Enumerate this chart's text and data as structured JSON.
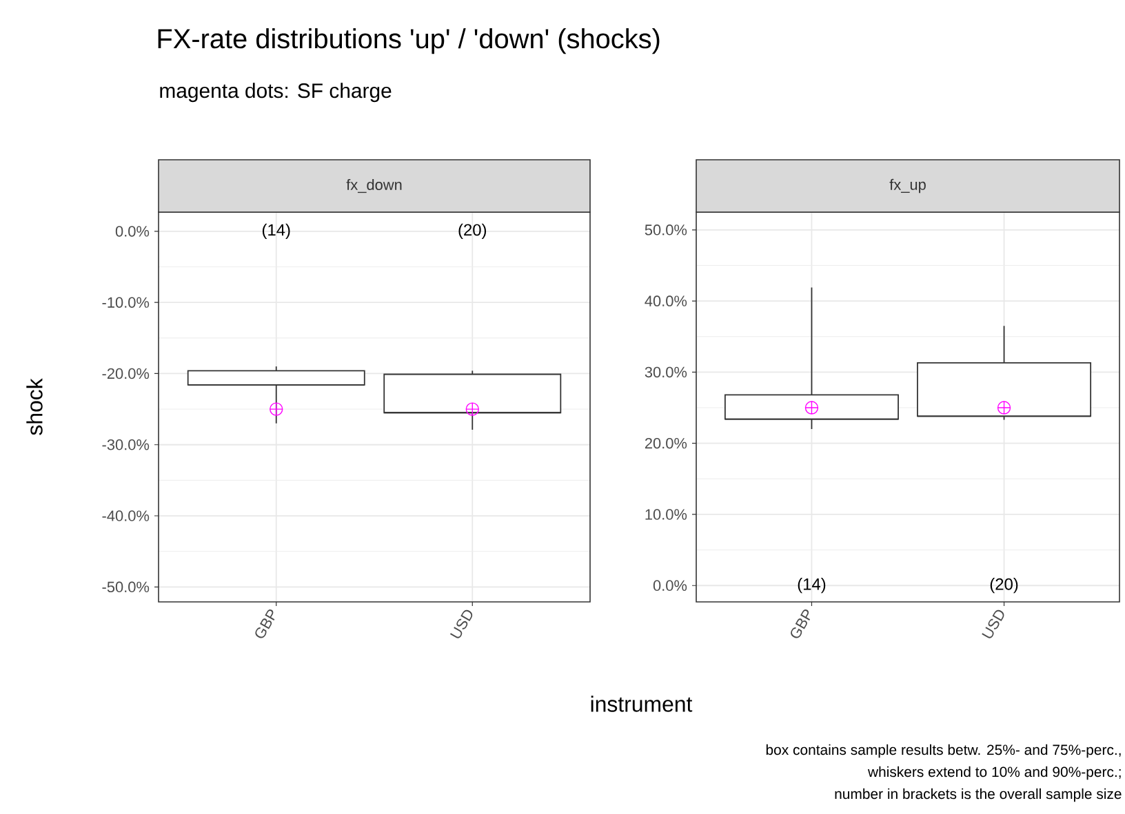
{
  "chart_data": [
    {
      "type": "box",
      "title": "FX-rate distributions 'up' / 'down' (shocks)",
      "subtitle": "magenta dots: SF charge",
      "xlabel": "instrument",
      "ylabel": "shock",
      "categories": [
        "GBP",
        "USD"
      ],
      "boxes": [
        {
          "low": -27.0,
          "q1": -21.6,
          "median": -21.6,
          "q3": -19.6,
          "high": -19.0
        },
        {
          "low": -27.9,
          "q1": -25.5,
          "median": -25.5,
          "q3": -20.1,
          "high": -19.6
        }
      ],
      "series": [
        {
          "type": "scatter",
          "x": [
            "GBP",
            "USD"
          ],
          "values": [
            -25,
            -25
          ],
          "color": "#ff00ff",
          "marker": "cross"
        }
      ],
      "ylim": [
        -52.1,
        2.7
      ],
      "yticks": [
        {
          "value": -50,
          "label": "-50.0%"
        },
        {
          "value": -40,
          "label": "-40.0%"
        },
        {
          "value": -30,
          "label": "-30.0%"
        },
        {
          "value": -20,
          "label": "-20.0%"
        },
        {
          "value": -10,
          "label": "-10.0%"
        },
        {
          "value": 0,
          "label": "0.0%"
        }
      ],
      "grid": true,
      "annotations": [
        "fx_down",
        "(14)",
        "(20)",
        "box contains sample results betw. 25%- and 75%-perc.,",
        "whiskers extend to 10% and 90%-perc.;",
        "number in brackets is the overall sample size"
      ]
    },
    {
      "type": "box",
      "categories": [
        "GBP",
        "USD"
      ],
      "boxes": [
        {
          "low": 22.0,
          "q1": 23.4,
          "median": 23.4,
          "q3": 26.8,
          "high": 41.9
        },
        {
          "low": 23.3,
          "q1": 23.8,
          "median": 23.8,
          "q3": 31.3,
          "high": 36.5
        }
      ],
      "series": [
        {
          "type": "scatter",
          "x": [
            "GBP",
            "USD"
          ],
          "values": [
            25,
            25
          ],
          "color": "#ff00ff",
          "marker": "cross"
        }
      ],
      "ylim": [
        -2.3,
        52.5
      ],
      "yticks": [
        {
          "value": 0,
          "label": "0.0%"
        },
        {
          "value": 10,
          "label": "10.0%"
        },
        {
          "value": 20,
          "label": "20.0%"
        },
        {
          "value": 30,
          "label": "30.0%"
        },
        {
          "value": 40,
          "label": "40.0%"
        },
        {
          "value": 50,
          "label": "50.0%"
        }
      ],
      "grid": true,
      "annotations": [
        "fx_up",
        "(14)",
        "(20)"
      ]
    }
  ]
}
